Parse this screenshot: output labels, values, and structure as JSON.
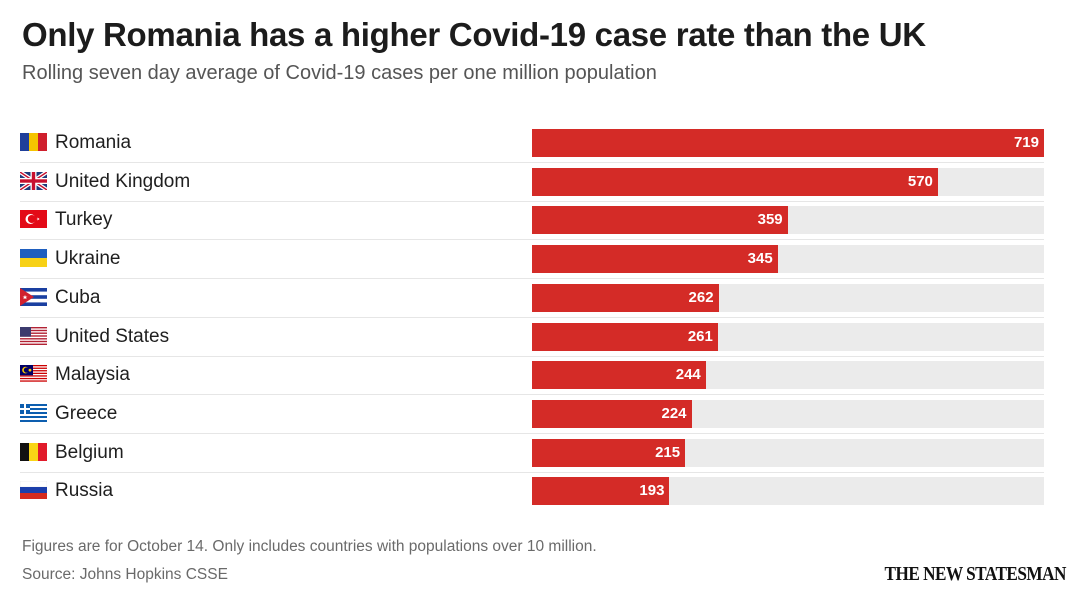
{
  "header": {
    "title": "Only Romania has a higher Covid-19 case rate than the UK",
    "subtitle": "Rolling seven day average of Covid-19 cases per one million population"
  },
  "footer": {
    "note": "Figures are for October 14. Only includes countries with populations over 10 million.",
    "source": "Source: Johns Hopkins CSSE",
    "brand": "THE NEW STATESMAN"
  },
  "chart_data": {
    "type": "bar",
    "orientation": "horizontal",
    "title": "Only Romania has a higher Covid-19 case rate than the UK",
    "subtitle": "Rolling seven day average of Covid-19 cases per one million population",
    "xlim": [
      0,
      719
    ],
    "grid": false,
    "bar_color": "#d42b27",
    "track_color": "#ebebeb",
    "categories": [
      "Romania",
      "United Kingdom",
      "Turkey",
      "Ukraine",
      "Cuba",
      "United States",
      "Malaysia",
      "Greece",
      "Belgium",
      "Russia"
    ],
    "values": [
      719,
      570,
      359,
      345,
      262,
      261,
      244,
      224,
      215,
      193
    ],
    "flags": [
      "romania-flag-icon",
      "uk-flag-icon",
      "turkey-flag-icon",
      "ukraine-flag-icon",
      "cuba-flag-icon",
      "us-flag-icon",
      "malaysia-flag-icon",
      "greece-flag-icon",
      "belgium-flag-icon",
      "russia-flag-icon"
    ]
  }
}
